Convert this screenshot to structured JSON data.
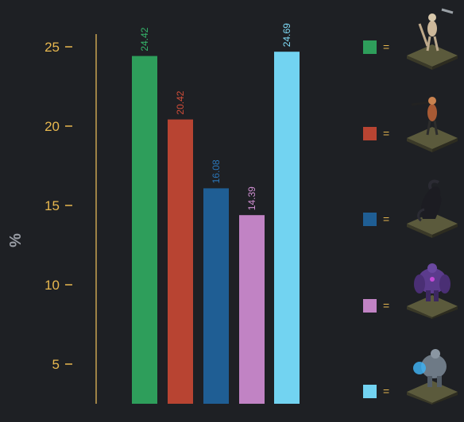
{
  "chart_data": {
    "type": "bar",
    "categories": [
      "",
      "",
      "",
      "",
      ""
    ],
    "values": [
      24.42,
      20.42,
      16.08,
      14.39,
      24.69
    ],
    "colors": [
      "#2e9e5b",
      "#b84432",
      "#1f5e94",
      "#c183c4",
      "#72d3f1"
    ],
    "label_colors": [
      "#35b56a",
      "#d14d39",
      "#2a75b7",
      "#cf8ed1",
      "#7fdcf8"
    ],
    "ylabel": "%",
    "yticks": [
      "5",
      "10",
      "15",
      "20",
      "25"
    ],
    "data_labels": [
      "24.42",
      "20.42",
      "16.08",
      "14.39",
      "24.69"
    ],
    "axis_color": "#e8b84f",
    "grid": false,
    "legend_position": "right"
  },
  "legend": {
    "items": [
      {
        "swatch_color": "#2e9e5b",
        "symbol": "=",
        "icon": "skeleton-warrior-figure"
      },
      {
        "swatch_color": "#b84432",
        "symbol": "=",
        "icon": "archer-figure"
      },
      {
        "swatch_color": "#1f5e94",
        "symbol": "=",
        "icon": "shadow-beast-figure"
      },
      {
        "swatch_color": "#c183c4",
        "symbol": "=",
        "icon": "purple-brute-figure"
      },
      {
        "swatch_color": "#72d3f1",
        "symbol": "=",
        "icon": "frost-golem-figure"
      }
    ]
  }
}
